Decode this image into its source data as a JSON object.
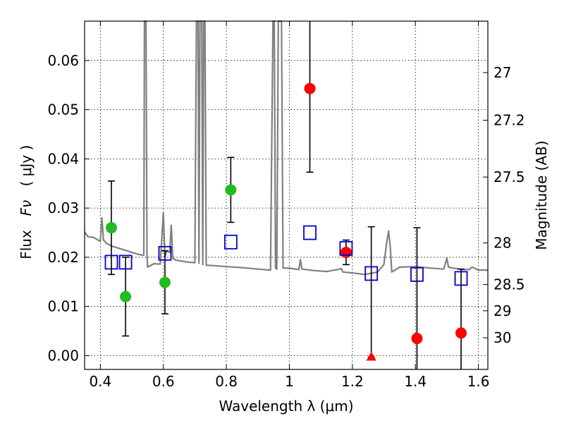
{
  "chart_data": {
    "type": "scatter",
    "title": "",
    "xlabel": "Wavelength  λ (μm)",
    "ylabel_text": "Flux",
    "ylabel_symbol": "Fν",
    "ylabel_unit": "( μJy )",
    "ylabel_right": "Magnitude (AB)",
    "xlim": [
      0.35,
      1.63
    ],
    "ylim": [
      -0.0028,
      0.068
    ],
    "grid": true,
    "x_ticks": [
      {
        "value": 0.4,
        "label": "0.4"
      },
      {
        "value": 0.6,
        "label": "0.6"
      },
      {
        "value": 0.8,
        "label": "0.8"
      },
      {
        "value": 1.0,
        "label": "1"
      },
      {
        "value": 1.2,
        "label": "1.2"
      },
      {
        "value": 1.4,
        "label": "1.4"
      },
      {
        "value": 1.6,
        "label": "1.6"
      }
    ],
    "y_ticks": [
      {
        "value": 0.0,
        "label": "0.00"
      },
      {
        "value": 0.01,
        "label": "0.01"
      },
      {
        "value": 0.02,
        "label": "0.02"
      },
      {
        "value": 0.03,
        "label": "0.03"
      },
      {
        "value": 0.04,
        "label": "0.04"
      },
      {
        "value": 0.05,
        "label": "0.05"
      },
      {
        "value": 0.06,
        "label": "0.06"
      }
    ],
    "right_ticks": [
      {
        "mag": 27,
        "label": "27"
      },
      {
        "mag": 27.2,
        "label": "27.2"
      },
      {
        "mag": 27.5,
        "label": "27.5"
      },
      {
        "mag": 28,
        "label": "28"
      },
      {
        "mag": 28.5,
        "label": "28.5"
      },
      {
        "mag": 29,
        "label": "29"
      },
      {
        "mag": 30,
        "label": "30"
      }
    ],
    "series": [
      {
        "name": "green detections",
        "marker": "circle",
        "color": "#22bb22",
        "points": [
          {
            "x": 0.435,
            "y": 0.026,
            "err_low": 0.0095,
            "err_high": 0.0095
          },
          {
            "x": 0.48,
            "y": 0.012,
            "err_low": 0.008,
            "err_high": 0.008
          },
          {
            "x": 0.605,
            "y": 0.0149,
            "err_low": 0.0064,
            "err_high": 0.0064
          },
          {
            "x": 0.814,
            "y": 0.0337,
            "err_low": 0.0066,
            "err_high": 0.0066
          }
        ]
      },
      {
        "name": "red detections",
        "marker": "circle",
        "color": "#ff0000",
        "points": [
          {
            "x": 1.065,
            "y": 0.0543,
            "err_low": 0.017,
            "err_high": 0.017
          },
          {
            "x": 1.18,
            "y": 0.021,
            "err_low": 0.0025,
            "err_high": 0.0025
          },
          {
            "x": 1.405,
            "y": 0.0035,
            "err_low": 0.0225,
            "err_high": 0.0225
          },
          {
            "x": 1.545,
            "y": 0.0046,
            "err_low": 0.013,
            "err_high": 0.013
          }
        ]
      },
      {
        "name": "upper limit",
        "marker": "triangle",
        "color": "#ff0000",
        "points": [
          {
            "x": 1.26,
            "y": -0.0003,
            "err_low": 0.0,
            "err_high": 0.0265
          }
        ]
      },
      {
        "name": "model photometry",
        "marker": "square",
        "color": "#0000cc",
        "points": [
          {
            "x": 0.435,
            "y": 0.019
          },
          {
            "x": 0.48,
            "y": 0.019
          },
          {
            "x": 0.605,
            "y": 0.0208
          },
          {
            "x": 0.814,
            "y": 0.0231
          },
          {
            "x": 1.065,
            "y": 0.025
          },
          {
            "x": 1.18,
            "y": 0.0218
          },
          {
            "x": 1.26,
            "y": 0.0167
          },
          {
            "x": 1.405,
            "y": 0.0165
          },
          {
            "x": 1.545,
            "y": 0.0157
          }
        ]
      },
      {
        "name": "model spectrum",
        "type": "line",
        "color": "#808080",
        "points": [
          [
            0.35,
            0.0252
          ],
          [
            0.36,
            0.0242
          ],
          [
            0.38,
            0.024
          ],
          [
            0.4,
            0.0232
          ],
          [
            0.405,
            0.028
          ],
          [
            0.41,
            0.0235
          ],
          [
            0.42,
            0.0228
          ],
          [
            0.44,
            0.0222
          ],
          [
            0.46,
            0.0218
          ],
          [
            0.48,
            0.0214
          ],
          [
            0.5,
            0.021
          ],
          [
            0.52,
            0.0206
          ],
          [
            0.535,
            0.0204
          ],
          [
            0.538,
            0.0205
          ],
          [
            0.54,
            0.068
          ],
          [
            0.545,
            0.068
          ],
          [
            0.548,
            0.0205
          ],
          [
            0.55,
            0.018
          ],
          [
            0.57,
            0.0187
          ],
          [
            0.59,
            0.0186
          ],
          [
            0.6,
            0.029
          ],
          [
            0.605,
            0.02
          ],
          [
            0.61,
            0.0212
          ],
          [
            0.62,
            0.021
          ],
          [
            0.625,
            0.0265
          ],
          [
            0.63,
            0.0198
          ],
          [
            0.64,
            0.0194
          ],
          [
            0.66,
            0.0192
          ],
          [
            0.68,
            0.019
          ],
          [
            0.7,
            0.0189
          ],
          [
            0.705,
            0.068
          ],
          [
            0.71,
            0.068
          ],
          [
            0.713,
            0.0188
          ],
          [
            0.716,
            0.068
          ],
          [
            0.722,
            0.068
          ],
          [
            0.725,
            0.0185
          ],
          [
            0.728,
            0.068
          ],
          [
            0.732,
            0.068
          ],
          [
            0.736,
            0.0184
          ],
          [
            0.76,
            0.0183
          ],
          [
            0.8,
            0.0181
          ],
          [
            0.85,
            0.0179
          ],
          [
            0.9,
            0.0176
          ],
          [
            0.94,
            0.0174
          ],
          [
            0.948,
            0.068
          ],
          [
            0.952,
            0.068
          ],
          [
            0.956,
            0.0178
          ],
          [
            0.96,
            0.0176
          ],
          [
            0.965,
            0.068
          ],
          [
            0.975,
            0.068
          ],
          [
            0.98,
            0.0178
          ],
          [
            1.0,
            0.0178
          ],
          [
            1.03,
            0.0175
          ],
          [
            1.035,
            0.0195
          ],
          [
            1.04,
            0.0176
          ],
          [
            1.08,
            0.0173
          ],
          [
            1.12,
            0.0171
          ],
          [
            1.16,
            0.0176
          ],
          [
            1.165,
            0.0177
          ],
          [
            1.17,
            0.017
          ],
          [
            1.2,
            0.0168
          ],
          [
            1.24,
            0.0165
          ],
          [
            1.28,
            0.017
          ],
          [
            1.3,
            0.0185
          ],
          [
            1.31,
            0.0235
          ],
          [
            1.315,
            0.0253
          ],
          [
            1.32,
            0.0222
          ],
          [
            1.325,
            0.017
          ],
          [
            1.35,
            0.018
          ],
          [
            1.4,
            0.0181
          ],
          [
            1.45,
            0.0178
          ],
          [
            1.49,
            0.0176
          ],
          [
            1.5,
            0.0198
          ],
          [
            1.505,
            0.018
          ],
          [
            1.52,
            0.0178
          ],
          [
            1.55,
            0.0175
          ],
          [
            1.57,
            0.0175
          ],
          [
            1.58,
            0.018
          ],
          [
            1.6,
            0.0174
          ],
          [
            1.63,
            0.0174
          ]
        ]
      }
    ]
  }
}
